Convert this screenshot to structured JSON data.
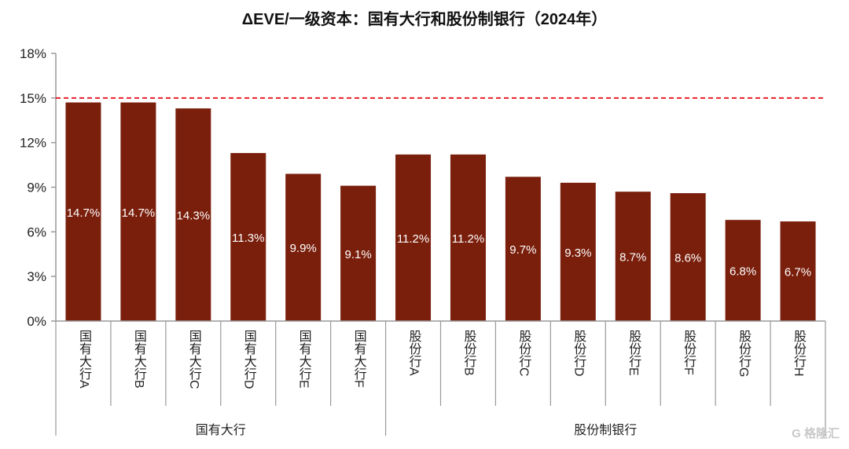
{
  "chart_data": {
    "type": "bar",
    "title": "ΔEVE/一级资本：国有大行和股份制银行（2024年）",
    "categories": [
      "国有大行A",
      "国有大行B",
      "国有大行C",
      "国有大行D",
      "国有大行E",
      "国有大行F",
      "股份行A",
      "股份行B",
      "股份行C",
      "股份行D",
      "股份行E",
      "股份行F",
      "股份行G",
      "股份行H"
    ],
    "values": [
      14.7,
      14.7,
      14.3,
      11.3,
      9.9,
      9.1,
      11.2,
      11.2,
      9.7,
      9.3,
      8.7,
      8.6,
      6.8,
      6.7
    ],
    "data_labels": [
      "14.7%",
      "14.7%",
      "14.3%",
      "11.3%",
      "9.9%",
      "9.1%",
      "11.2%",
      "11.2%",
      "9.7%",
      "9.3%",
      "8.7%",
      "8.6%",
      "6.8%",
      "6.7%"
    ],
    "groups": [
      {
        "label": "国有大行",
        "count": 6
      },
      {
        "label": "股份制银行",
        "count": 8
      }
    ],
    "ylim": [
      0,
      18
    ],
    "yticks": [
      0,
      3,
      6,
      9,
      12,
      15,
      18
    ],
    "ytick_labels": [
      "0%",
      "3%",
      "6%",
      "9%",
      "12%",
      "15%",
      "18%"
    ],
    "reference_line": 15,
    "xlabel": "",
    "ylabel": "",
    "bar_color": "#7a1f0c",
    "reference_color": "#e8202a"
  },
  "watermark": "格隆汇"
}
